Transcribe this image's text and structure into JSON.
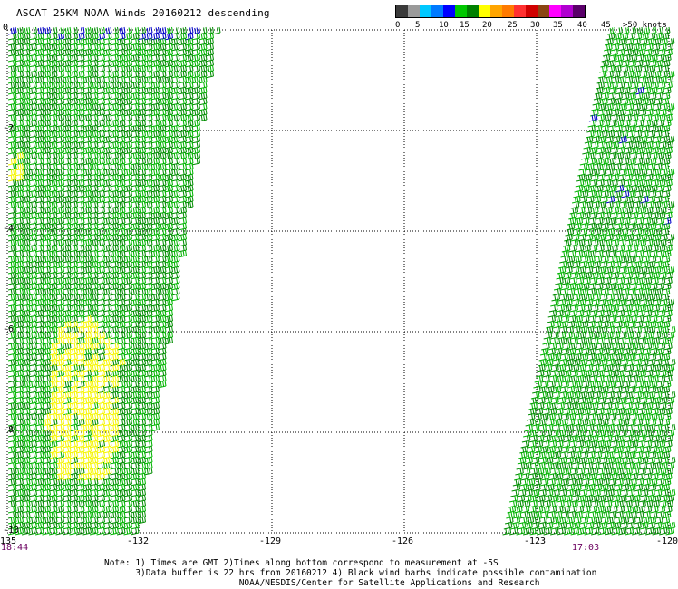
{
  "title": "ASCAT 25KM NOAA Winds 20160212 descending",
  "color_scale": {
    "colors": [
      "#3a3a3a",
      "#9a9a9a",
      "#00c8ff",
      "#007aff",
      "#0000ff",
      "#00c800",
      "#008000",
      "#ffff00",
      "#ffa500",
      "#ff7a00",
      "#ff3030",
      "#d00000",
      "#8b4513",
      "#ff00ff",
      "#b000d0",
      "#5a006a"
    ],
    "labels": [
      "0",
      "5",
      "10",
      "15",
      "20",
      "25",
      "30",
      "35",
      "40",
      "45",
      ">50 knots"
    ]
  },
  "axes": {
    "x_ticks": [
      "-135",
      "-132",
      "-129",
      "-126",
      "-123",
      "-120"
    ],
    "y_ticks": [
      "0",
      "-2",
      "-4",
      "-6",
      "-8",
      "-10"
    ],
    "x_range": [
      -135,
      -120
    ],
    "y_range": [
      -10,
      0
    ]
  },
  "pass_times": {
    "left": "18:44",
    "right": "17:03"
  },
  "notes": [
    "Note: 1) Times are GMT 2)Times along bottom correspond to measurement at -5S",
    "      3)Data buffer is 22 hrs from 20160212 4) Black wind barbs indicate possible contamination",
    "                          NOAA/NESDIS/Center for Satellite Applications and Research"
  ],
  "swaths": [
    {
      "name": "left",
      "dominant_speed_knots": "15-20"
    },
    {
      "name": "right",
      "dominant_speed_knots": "15-20"
    }
  ]
}
